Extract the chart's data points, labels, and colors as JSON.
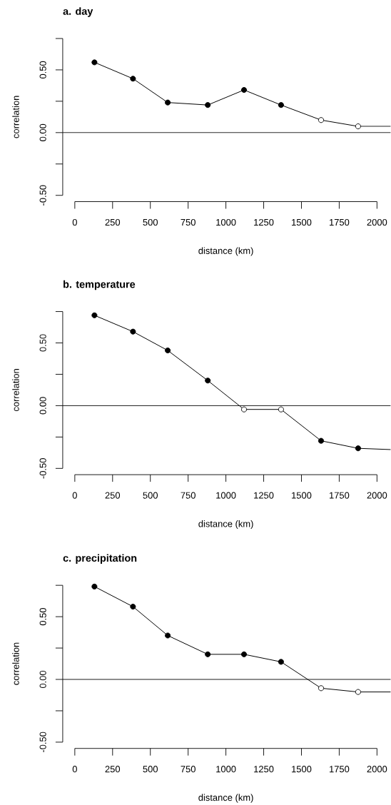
{
  "chart_data": [
    {
      "type": "line",
      "title": "a. day",
      "xlabel": "distance (km)",
      "ylabel": "correlation",
      "xlim": [
        -80,
        2090
      ],
      "ylim": [
        -0.55,
        0.75
      ],
      "xticks": [
        0,
        250,
        500,
        750,
        1000,
        1250,
        1500,
        1750,
        2000
      ],
      "yticks": [
        {
          "value": -0.5,
          "label": "-0.50"
        },
        {
          "value": -0.25,
          "label": null
        },
        {
          "value": 0,
          "label": "0.00"
        },
        {
          "value": 0.25,
          "label": null
        },
        {
          "value": 0.5,
          "label": "0.50"
        },
        {
          "value": 0.75,
          "label": null
        }
      ],
      "ref_lines": [
        {
          "axis": "y",
          "value": 0,
          "color": "#000000"
        }
      ],
      "series": [
        {
          "type": "line",
          "marker": "none",
          "color": "#000000",
          "x": [
            130,
            385,
            615,
            880,
            1120,
            1365,
            1630,
            1875,
            2090
          ],
          "values": [
            0.56,
            0.43,
            0.24,
            0.22,
            0.34,
            0.22,
            0.1,
            0.05,
            0.05
          ]
        },
        {
          "type": "scatter",
          "marker": "circle",
          "color": "#000000",
          "x": [
            130,
            385,
            615,
            880,
            1120,
            1365,
            1630,
            1875
          ],
          "values": [
            0.56,
            0.43,
            0.24,
            0.22,
            0.34,
            0.22,
            0.1,
            0.05
          ],
          "colors": [
            "#000000",
            "#000000",
            "#000000",
            "#000000",
            "#000000",
            "#000000",
            "#ffffff",
            "#ffffff"
          ]
        }
      ]
    },
    {
      "type": "line",
      "title": "b. temperature",
      "xlabel": "distance (km)",
      "ylabel": "correlation",
      "xlim": [
        -80,
        2090
      ],
      "ylim": [
        -0.55,
        0.75
      ],
      "xticks": [
        0,
        250,
        500,
        750,
        1000,
        1250,
        1500,
        1750,
        2000
      ],
      "yticks": [
        {
          "value": -0.5,
          "label": "-0.50"
        },
        {
          "value": -0.25,
          "label": null
        },
        {
          "value": 0,
          "label": "0.00"
        },
        {
          "value": 0.25,
          "label": null
        },
        {
          "value": 0.5,
          "label": "0.50"
        },
        {
          "value": 0.75,
          "label": null
        }
      ],
      "ref_lines": [
        {
          "axis": "y",
          "value": 0,
          "color": "#000000"
        }
      ],
      "series": [
        {
          "type": "line",
          "marker": "none",
          "color": "#000000",
          "x": [
            130,
            385,
            615,
            880,
            1120,
            1365,
            1630,
            1875,
            2090
          ],
          "values": [
            0.72,
            0.59,
            0.44,
            0.2,
            -0.03,
            -0.03,
            -0.28,
            -0.34,
            -0.35
          ]
        },
        {
          "type": "scatter",
          "marker": "circle",
          "color": "#000000",
          "x": [
            130,
            385,
            615,
            880,
            1120,
            1365,
            1630,
            1875
          ],
          "values": [
            0.72,
            0.59,
            0.44,
            0.2,
            -0.03,
            -0.03,
            -0.28,
            -0.34
          ],
          "colors": [
            "#000000",
            "#000000",
            "#000000",
            "#000000",
            "#ffffff",
            "#ffffff",
            "#000000",
            "#000000"
          ]
        }
      ]
    },
    {
      "type": "line",
      "title": "c. precipitation",
      "xlabel": "distance (km)",
      "ylabel": "correlation",
      "xlim": [
        -80,
        2090
      ],
      "ylim": [
        -0.55,
        0.75
      ],
      "xticks": [
        0,
        250,
        500,
        750,
        1000,
        1250,
        1500,
        1750,
        2000
      ],
      "yticks": [
        {
          "value": -0.5,
          "label": "-0.50"
        },
        {
          "value": -0.25,
          "label": null
        },
        {
          "value": 0,
          "label": "0.00"
        },
        {
          "value": 0.25,
          "label": null
        },
        {
          "value": 0.5,
          "label": "0.50"
        },
        {
          "value": 0.75,
          "label": null
        }
      ],
      "ref_lines": [
        {
          "axis": "y",
          "value": 0,
          "color": "#000000"
        }
      ],
      "series": [
        {
          "type": "line",
          "marker": "none",
          "color": "#000000",
          "x": [
            130,
            385,
            615,
            880,
            1120,
            1365,
            1630,
            1875,
            2090
          ],
          "values": [
            0.74,
            0.58,
            0.35,
            0.2,
            0.2,
            0.14,
            -0.07,
            -0.1,
            -0.1
          ]
        },
        {
          "type": "scatter",
          "marker": "circle",
          "color": "#000000",
          "x": [
            130,
            385,
            615,
            880,
            1120,
            1365,
            1630,
            1875
          ],
          "values": [
            0.74,
            0.58,
            0.35,
            0.2,
            0.2,
            0.14,
            -0.07,
            -0.1
          ],
          "colors": [
            "#000000",
            "#000000",
            "#000000",
            "#000000",
            "#000000",
            "#000000",
            "#ffffff",
            "#ffffff"
          ]
        }
      ]
    }
  ]
}
